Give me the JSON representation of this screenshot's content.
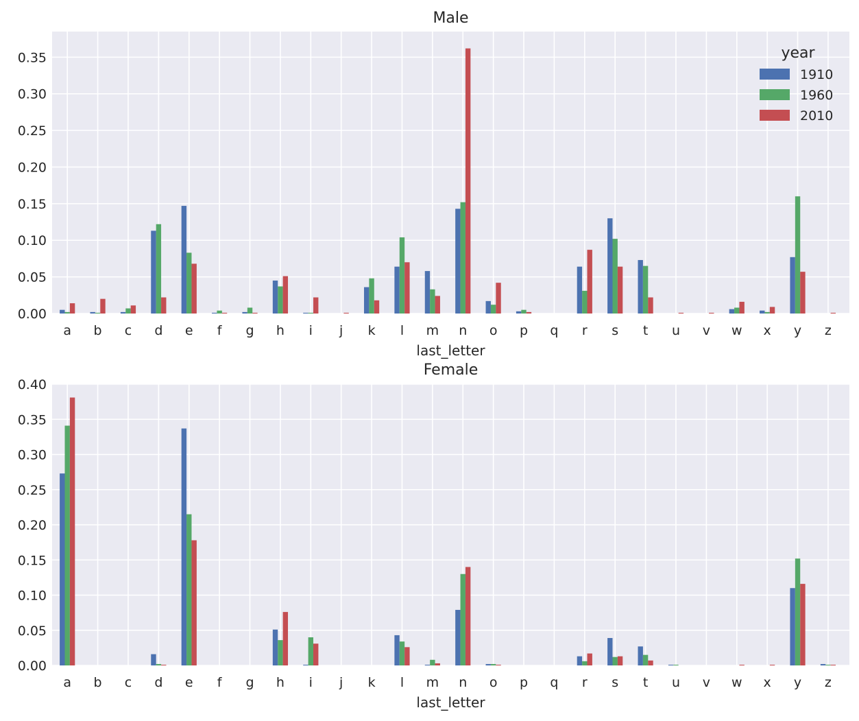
{
  "chart_data": [
    {
      "type": "bar",
      "title": "Male",
      "xlabel": "last_letter",
      "ylabel": "",
      "ylim": [
        0,
        0.385
      ],
      "yticks": [
        "0.00",
        "0.05",
        "0.10",
        "0.15",
        "0.20",
        "0.25",
        "0.30",
        "0.35"
      ],
      "grid": true,
      "legend": {
        "title": "year",
        "placement": "top-right"
      },
      "categories": [
        "a",
        "b",
        "c",
        "d",
        "e",
        "f",
        "g",
        "h",
        "i",
        "j",
        "k",
        "l",
        "m",
        "n",
        "o",
        "p",
        "q",
        "r",
        "s",
        "t",
        "u",
        "v",
        "w",
        "x",
        "y",
        "z"
      ],
      "series": [
        {
          "name": "1910",
          "color": "#4c72b0",
          "values": [
            0.005,
            0.002,
            0.002,
            0.113,
            0.147,
            0.001,
            0.002,
            0.045,
            0.001,
            0.0,
            0.036,
            0.064,
            0.058,
            0.143,
            0.017,
            0.003,
            0.0,
            0.064,
            0.13,
            0.073,
            0.0,
            0.0,
            0.006,
            0.004,
            0.077,
            0.0
          ]
        },
        {
          "name": "1960",
          "color": "#55a868",
          "values": [
            0.002,
            0.001,
            0.007,
            0.122,
            0.083,
            0.004,
            0.008,
            0.037,
            0.001,
            0.0,
            0.048,
            0.104,
            0.033,
            0.152,
            0.012,
            0.005,
            0.0,
            0.031,
            0.102,
            0.065,
            0.0,
            0.0,
            0.008,
            0.002,
            0.16,
            0.0
          ]
        },
        {
          "name": "2010",
          "color": "#c44e52",
          "values": [
            0.014,
            0.02,
            0.011,
            0.022,
            0.068,
            0.001,
            0.001,
            0.051,
            0.022,
            0.001,
            0.018,
            0.07,
            0.024,
            0.362,
            0.042,
            0.002,
            0.0,
            0.087,
            0.064,
            0.022,
            0.001,
            0.001,
            0.016,
            0.009,
            0.057,
            0.001
          ]
        }
      ]
    },
    {
      "type": "bar",
      "title": "Female",
      "xlabel": "last_letter",
      "ylabel": "",
      "ylim": [
        0,
        0.4
      ],
      "yticks": [
        "0.00",
        "0.05",
        "0.10",
        "0.15",
        "0.20",
        "0.25",
        "0.30",
        "0.35",
        "0.40"
      ],
      "grid": true,
      "categories": [
        "a",
        "b",
        "c",
        "d",
        "e",
        "f",
        "g",
        "h",
        "i",
        "j",
        "k",
        "l",
        "m",
        "n",
        "o",
        "p",
        "q",
        "r",
        "s",
        "t",
        "u",
        "v",
        "w",
        "x",
        "y",
        "z"
      ],
      "series": [
        {
          "name": "1910",
          "color": "#4c72b0",
          "values": [
            0.273,
            0.0,
            0.0,
            0.016,
            0.337,
            0.0,
            0.0,
            0.051,
            0.001,
            0.0,
            0.0,
            0.043,
            0.001,
            0.079,
            0.002,
            0.0,
            0.0,
            0.013,
            0.039,
            0.027,
            0.001,
            0.0,
            0.0,
            0.0,
            0.11,
            0.002
          ]
        },
        {
          "name": "1960",
          "color": "#55a868",
          "values": [
            0.341,
            0.0,
            0.0,
            0.002,
            0.215,
            0.0,
            0.0,
            0.036,
            0.04,
            0.0,
            0.0,
            0.034,
            0.008,
            0.13,
            0.002,
            0.0,
            0.0,
            0.006,
            0.012,
            0.015,
            0.001,
            0.0,
            0.0,
            0.0,
            0.152,
            0.001
          ]
        },
        {
          "name": "2010",
          "color": "#c44e52",
          "values": [
            0.381,
            0.0,
            0.0,
            0.001,
            0.178,
            0.0,
            0.0,
            0.076,
            0.031,
            0.0,
            0.0,
            0.026,
            0.003,
            0.14,
            0.001,
            0.0,
            0.0,
            0.017,
            0.013,
            0.007,
            0.0,
            0.0,
            0.001,
            0.001,
            0.116,
            0.001
          ]
        }
      ]
    }
  ]
}
